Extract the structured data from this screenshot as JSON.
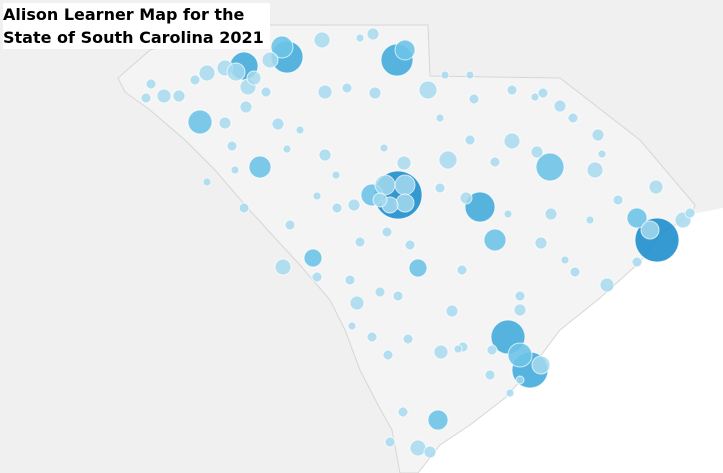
{
  "title": {
    "lines": [
      "Alison Learner Map for the",
      "State of South Carolina 2021"
    ]
  }
}
